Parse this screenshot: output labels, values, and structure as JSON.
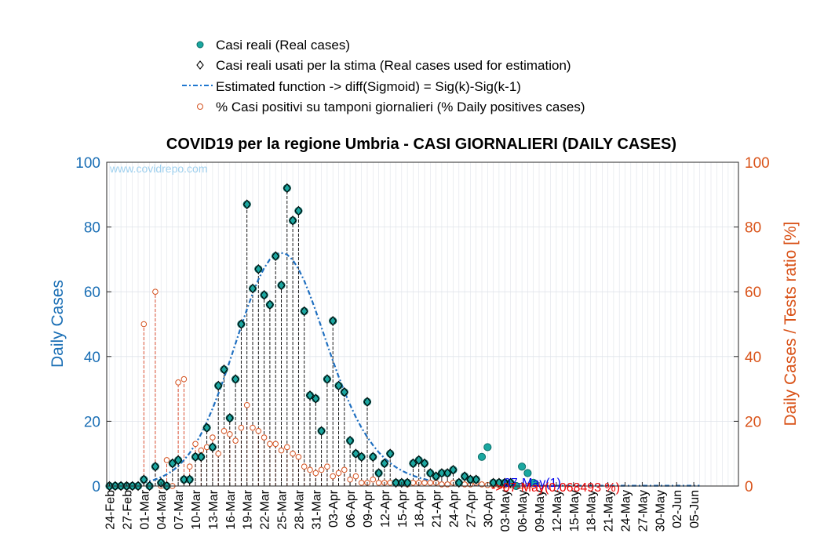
{
  "chart_data": {
    "type": "scatter",
    "title": "COVID19 per la regione Umbria - CASI GIORNALIERI (DAILY CASES)",
    "watermark": "www.covidrepo.com",
    "ylabel_left": "Daily Cases",
    "ylabel_right": "Daily Cases / Tests ratio [%]",
    "ylim_left": [
      0,
      100
    ],
    "ylim_right": [
      0,
      100
    ],
    "yticks_left": [
      "0",
      "20",
      "40",
      "60",
      "80",
      "100"
    ],
    "yticks_right": [
      "0",
      "20",
      "40",
      "60",
      "80",
      "100"
    ],
    "x_tick_labels": [
      "24-Feb",
      "27-Feb",
      "01-Mar",
      "04-Mar",
      "07-Mar",
      "10-Mar",
      "13-Mar",
      "16-Mar",
      "19-Mar",
      "22-Mar",
      "25-Mar",
      "28-Mar",
      "31-Mar",
      "03-Apr",
      "06-Apr",
      "09-Apr",
      "12-Apr",
      "15-Apr",
      "18-Apr",
      "21-Apr",
      "24-Apr",
      "27-Apr",
      "30-Apr",
      "03-May",
      "06-May",
      "09-May",
      "12-May",
      "15-May",
      "18-May",
      "21-May",
      "24-May",
      "27-May",
      "30-May",
      "02-Jun",
      "05-Jun"
    ],
    "x_tick_interval_days": 3,
    "grid": true,
    "legend_position": "top",
    "legend": [
      {
        "label": "Casi reali (Real cases)",
        "marker": "teal-filled-circle"
      },
      {
        "label": "Casi reali usati per la stima (Real cases used for estimation)",
        "marker": "black-diamond"
      },
      {
        "label": "Estimated function -> diff(Sigmoid) = Sig(k)-Sig(k-1)",
        "marker": "blue-dash-dot-line"
      },
      {
        "label": "% Casi positivi su tamponi giornalieri (% Daily positives cases)",
        "marker": "orange-open-circle"
      }
    ],
    "annotations": {
      "blue_end": "07-May(1)",
      "red_end": "->07-May(0.068493 %)"
    },
    "series": [
      {
        "name": "Casi reali (Real cases)",
        "values": [
          0,
          0,
          0,
          0,
          0,
          0,
          2,
          0,
          6,
          1,
          0,
          7,
          8,
          2,
          2,
          9,
          9,
          18,
          12,
          31,
          36,
          21,
          33,
          50,
          87,
          61,
          67,
          59,
          56,
          71,
          62,
          92,
          82,
          85,
          54,
          28,
          27,
          17,
          33,
          51,
          31,
          29,
          14,
          10,
          9,
          26,
          9,
          4,
          7,
          10,
          1,
          1,
          1,
          7,
          8,
          7,
          4,
          3,
          4,
          4,
          5,
          1,
          3,
          2,
          2,
          9,
          12,
          1,
          1,
          1,
          1,
          0,
          6,
          4,
          1
        ]
      },
      {
        "name": "Casi reali usati per la stima (Real cases used for estimation)",
        "values": [
          0,
          0,
          0,
          0,
          0,
          0,
          2,
          0,
          6,
          1,
          0,
          7,
          8,
          2,
          2,
          9,
          9,
          18,
          12,
          31,
          36,
          21,
          33,
          50,
          87,
          61,
          67,
          59,
          56,
          71,
          62,
          92,
          82,
          85,
          54,
          28,
          27,
          17,
          33,
          51,
          31,
          29,
          14,
          10,
          9,
          26,
          9,
          4,
          7,
          10,
          1,
          1,
          1,
          7,
          8,
          7,
          4,
          3,
          4,
          4,
          5,
          1,
          3,
          2,
          2,
          0,
          0,
          1,
          1,
          1,
          1,
          0,
          0,
          0,
          0
        ]
      },
      {
        "name": "Estimated function -> diff(Sigmoid) = Sig(k)-Sig(k-1)",
        "values": [
          0.1,
          0.2,
          0.3,
          0.4,
          0.6,
          0.8,
          1.1,
          1.5,
          2,
          2.7,
          3.6,
          4.7,
          6.2,
          8,
          10.2,
          12.9,
          16.1,
          19.8,
          23.9,
          28.5,
          33.4,
          38.6,
          44,
          49.4,
          54.6,
          59.5,
          63.8,
          67.3,
          70,
          71.6,
          72,
          71.5,
          69.8,
          67,
          63.4,
          59,
          54.1,
          49,
          43.8,
          38.7,
          33.8,
          29.3,
          25.1,
          21.3,
          18,
          15.1,
          12.6,
          10.4,
          8.6,
          7.1,
          5.8,
          4.8,
          3.9,
          3.2,
          2.6,
          2.1,
          1.7,
          1.4,
          1.1,
          0.9,
          0.7,
          0.6,
          0.5,
          0.4,
          0.3,
          0.3,
          0.2,
          0.2,
          0.1,
          0.1,
          0.1,
          0.1,
          0.1,
          0.1,
          0.1,
          0.1,
          0.1,
          0.1,
          0.1,
          0.1,
          0.1,
          0.1,
          0.1,
          0.1,
          0.1,
          0.1,
          0.1,
          0.1,
          0.1,
          0.1,
          0.1,
          0.1,
          0.1,
          0.1,
          0.1,
          0.1,
          0.1,
          0.1,
          0.1,
          0.1,
          0.1,
          0.1,
          0.1,
          0.1
        ]
      },
      {
        "name": "% Casi positivi su tamponi giornalieri (% Daily positives cases)",
        "axis": "right",
        "values": [
          0,
          0,
          0,
          0,
          0,
          0,
          50,
          0,
          60,
          0,
          8,
          0,
          32,
          33,
          6,
          13,
          11,
          12,
          15,
          10,
          17,
          16,
          14,
          18,
          25,
          18,
          17,
          15,
          13,
          13,
          11,
          12,
          10,
          9,
          6,
          5,
          4,
          5,
          6,
          3,
          4,
          5,
          2,
          3,
          1,
          1,
          2,
          1,
          1,
          1,
          1,
          1,
          0.5,
          1,
          1,
          1,
          1,
          1,
          0.5,
          0.5,
          1,
          1,
          0.5,
          0.5,
          1,
          0.5,
          0.3,
          0.3,
          0.2,
          0.2,
          0.2,
          0.2,
          0.1,
          0.1,
          0.07
        ]
      }
    ]
  }
}
